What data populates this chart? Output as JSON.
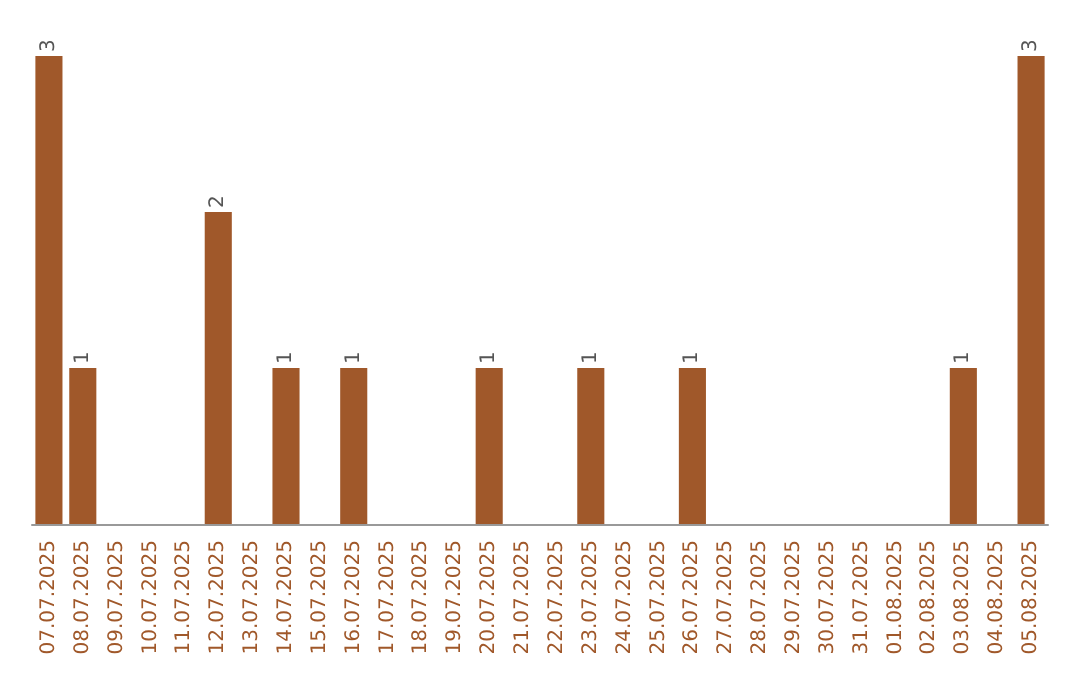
{
  "chart_data": {
    "type": "bar",
    "categories": [
      "07.07.2025",
      "08.07.2025",
      "09.07.2025",
      "10.07.2025",
      "11.07.2025",
      "12.07.2025",
      "13.07.2025",
      "14.07.2025",
      "15.07.2025",
      "16.07.2025",
      "17.07.2025",
      "18.07.2025",
      "19.07.2025",
      "20.07.2025",
      "21.07.2025",
      "22.07.2025",
      "23.07.2025",
      "24.07.2025",
      "25.07.2025",
      "26.07.2025",
      "27.07.2025",
      "28.07.2025",
      "29.07.2025",
      "30.07.2025",
      "31.07.2025",
      "01.08.2025",
      "02.08.2025",
      "03.08.2025",
      "04.08.2025",
      "05.08.2025"
    ],
    "values": [
      3,
      1,
      0,
      0,
      0,
      2,
      0,
      1,
      0,
      1,
      0,
      0,
      0,
      1,
      0,
      0,
      1,
      0,
      0,
      1,
      0,
      0,
      0,
      0,
      0,
      0,
      0,
      1,
      0,
      3
    ],
    "value_labels": [
      "3",
      "1",
      null,
      null,
      null,
      "2",
      null,
      "1",
      null,
      "1",
      null,
      null,
      null,
      "1",
      null,
      null,
      "1",
      null,
      null,
      "1",
      null,
      null,
      null,
      null,
      null,
      null,
      null,
      "1",
      null,
      "3"
    ],
    "color": "#a0582a"
  }
}
